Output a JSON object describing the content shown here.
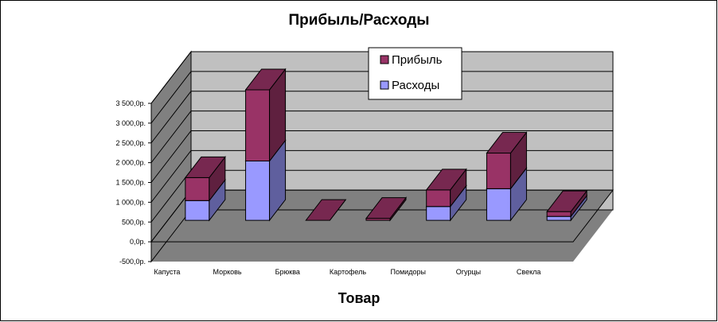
{
  "chart_data": {
    "type": "bar",
    "stacked": true,
    "three_d": true,
    "title": "Прибыль/Расходы",
    "xlabel": "Товар",
    "ylabel": "",
    "ylim": [
      -500,
      3500
    ],
    "yticks": [
      "-500,0р.",
      "0,0р.",
      "500,0р.",
      "1 000,0р.",
      "1 500,0р.",
      "2 000,0р.",
      "2 500,0р.",
      "3 000,0р.",
      "3 500,0р."
    ],
    "ytick_values": [
      -500,
      0,
      500,
      1000,
      1500,
      2000,
      2500,
      3000,
      3500
    ],
    "categories": [
      "Капуста",
      "Морковь",
      "Брюква",
      "Картофель",
      "Помидоры",
      "Огурцы",
      "Свекла"
    ],
    "series": [
      {
        "name": "Расходы",
        "values": [
          500,
          1500,
          0,
          0,
          350,
          800,
          100
        ],
        "color": "#9999ff"
      },
      {
        "name": "Прибыль",
        "values": [
          580,
          1800,
          0,
          50,
          420,
          900,
          120
        ],
        "color": "#993366"
      }
    ],
    "legend": "top-right",
    "legend_order": [
      "Прибыль",
      "Расходы"
    ],
    "grid": true,
    "wall_color": "#c0c0c0",
    "side_wall_color": "#808080",
    "floor_color": "#808080"
  }
}
